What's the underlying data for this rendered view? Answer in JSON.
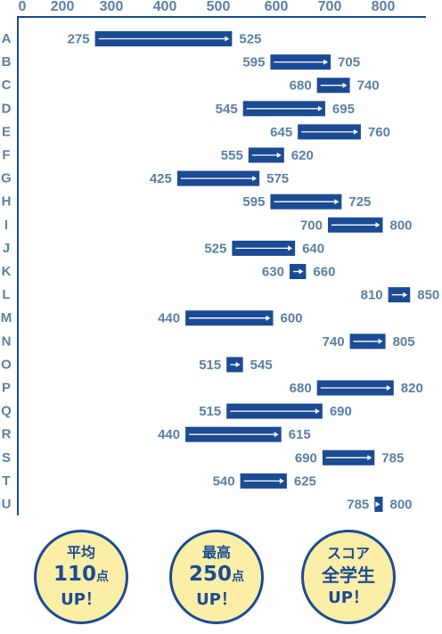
{
  "colors": {
    "bar": "#1b4b94",
    "text": "#5b7fa6",
    "axis": "#1b4b94",
    "badge_fill": "#fbeea6",
    "badge_border": "#1b4b94"
  },
  "chart_data": {
    "type": "bar",
    "orientation": "horizontal-range",
    "xlim": [
      0,
      850
    ],
    "xticks": [
      "0",
      "200",
      "300",
      "400",
      "500",
      "600",
      "700",
      "800"
    ],
    "categories": [
      "A",
      "B",
      "C",
      "D",
      "E",
      "F",
      "G",
      "H",
      "I",
      "J",
      "K",
      "L",
      "M",
      "N",
      "O",
      "P",
      "Q",
      "R",
      "S",
      "T",
      "U"
    ],
    "series": [
      {
        "start": [
          275,
          595,
          680,
          545,
          645,
          555,
          425,
          595,
          700,
          525,
          630,
          810,
          440,
          740,
          515,
          680,
          515,
          440,
          690,
          540,
          785
        ],
        "end": [
          525,
          705,
          740,
          695,
          760,
          620,
          575,
          725,
          800,
          640,
          660,
          850,
          600,
          805,
          545,
          820,
          690,
          615,
          785,
          625,
          800
        ]
      }
    ]
  },
  "badges": [
    {
      "line1": "平均",
      "line2_num": "110",
      "line2_unit": "点",
      "line3": "UP！"
    },
    {
      "line1": "最高",
      "line2_num": "250",
      "line2_unit": "点",
      "line3": "UP！"
    },
    {
      "line1": "スコア",
      "line2_num": "全学生",
      "line2_unit": "",
      "line3": "UP！"
    }
  ]
}
